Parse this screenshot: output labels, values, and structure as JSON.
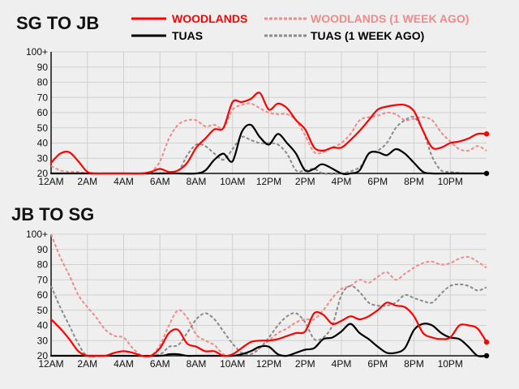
{
  "legend": {
    "woodlands": "WOODLANDS",
    "woodlands_week": "WOODLANDS (1 WEEK AGO)",
    "tuas": "TUAS",
    "tuas_week": "TUAS (1 WEEK AGO)"
  },
  "colors": {
    "woodlands": "#ff0000",
    "woodlands_week": "#f08a8a",
    "tuas": "#000000",
    "tuas_week": "#8a8a8a",
    "background": "#efefef"
  },
  "chart_data": [
    {
      "type": "line",
      "title": "SG TO JB",
      "xlabel": "",
      "ylabel": "",
      "ylim": [
        20,
        100
      ],
      "yticks": [
        "20",
        "30",
        "40",
        "50",
        "60",
        "70",
        "80",
        "90",
        "100+"
      ],
      "xticks": [
        "12AM",
        "2AM",
        "4AM",
        "6AM",
        "8AM",
        "10AM",
        "12PM",
        "2PM",
        "4PM",
        "6PM",
        "8PM",
        "10PM"
      ],
      "xlim": [
        0,
        24
      ],
      "grid": true,
      "series": [
        {
          "name": "WOODLANDS",
          "key": "woodlands",
          "style": "solid",
          "x": [
            0,
            0.5,
            1,
            1.5,
            2,
            2.5,
            3,
            4,
            5,
            5.5,
            6,
            6.5,
            7,
            7.5,
            8,
            8.5,
            9,
            9.5,
            10,
            10.5,
            11,
            11.5,
            12,
            12.5,
            13,
            13.5,
            14,
            14.5,
            15,
            15.5,
            16,
            16.5,
            17,
            17.5,
            18,
            18.5,
            19,
            19.5,
            20,
            20.5,
            21,
            21.5,
            22,
            22.5,
            23,
            23.5,
            24
          ],
          "y": [
            27,
            33,
            34,
            28,
            21,
            20,
            20,
            20,
            20,
            21,
            23,
            21,
            22,
            27,
            37,
            43,
            49,
            50,
            67,
            67,
            69,
            73,
            62,
            66,
            63,
            55,
            49,
            37,
            35,
            37,
            37,
            42,
            48,
            55,
            62,
            64,
            65,
            65,
            61,
            48,
            37,
            37,
            40,
            41,
            43,
            46,
            46
          ]
        },
        {
          "name": "WOODLANDS (1 WEEK AGO)",
          "key": "woodlands_week",
          "style": "dashed",
          "x": [
            0,
            0.5,
            1,
            1.5,
            2,
            2.5,
            3,
            4,
            5,
            5.5,
            6,
            6.5,
            7,
            7.5,
            8,
            8.5,
            9,
            9.5,
            10,
            10.5,
            11,
            11.5,
            12,
            12.5,
            13,
            13.5,
            14,
            14.5,
            15,
            15.5,
            16,
            16.5,
            17,
            17.5,
            18,
            18.5,
            19,
            19.5,
            20,
            20.5,
            21,
            21.5,
            22,
            22.5,
            23,
            23.5,
            24
          ],
          "y": [
            25,
            22,
            21,
            21,
            20,
            20,
            20,
            20,
            20,
            21,
            28,
            43,
            52,
            55,
            55,
            51,
            52,
            50,
            62,
            65,
            66,
            63,
            60,
            59,
            59,
            55,
            45,
            34,
            34,
            37,
            40,
            46,
            55,
            57,
            58,
            60,
            59,
            55,
            56,
            57,
            55,
            47,
            41,
            36,
            35,
            38,
            35
          ]
        },
        {
          "name": "TUAS",
          "key": "tuas",
          "style": "solid",
          "x": [
            0,
            2,
            4,
            6,
            7,
            8,
            8.5,
            9,
            9.5,
            10,
            10.5,
            11,
            11.5,
            12,
            12.5,
            13,
            13.5,
            14,
            14.5,
            15,
            16,
            16.5,
            17,
            17.5,
            18,
            18.5,
            19,
            19.5,
            20,
            20.5,
            21,
            22,
            23,
            24
          ],
          "y": [
            20,
            20,
            20,
            20,
            20,
            20,
            22,
            29,
            33,
            28,
            47,
            52,
            44,
            39,
            46,
            40,
            33,
            22,
            23,
            26,
            20,
            20,
            22,
            33,
            34,
            32,
            36,
            33,
            27,
            21,
            20,
            20,
            20,
            20
          ]
        },
        {
          "name": "TUAS (1 WEEK AGO)",
          "key": "tuas_week",
          "style": "dashed",
          "x": [
            0,
            2,
            4,
            6,
            7,
            7.5,
            8,
            8.5,
            9,
            9.5,
            10,
            10.5,
            11,
            11.5,
            12,
            12.5,
            13,
            13.5,
            14,
            14.5,
            15,
            16,
            17,
            17.5,
            18,
            18.5,
            19,
            19.5,
            20,
            20.5,
            21,
            21.5,
            22,
            23,
            24
          ],
          "y": [
            20,
            20,
            20,
            20,
            22,
            32,
            39,
            38,
            33,
            29,
            36,
            44,
            42,
            40,
            40,
            39,
            33,
            22,
            22,
            23,
            20,
            20,
            24,
            33,
            35,
            40,
            50,
            55,
            57,
            48,
            31,
            22,
            21,
            20,
            20
          ]
        }
      ]
    },
    {
      "type": "line",
      "title": "JB TO SG",
      "xlabel": "",
      "ylabel": "",
      "ylim": [
        20,
        100
      ],
      "yticks": [
        "20",
        "30",
        "40",
        "50",
        "60",
        "70",
        "80",
        "90",
        "100+"
      ],
      "xticks": [
        "12AM",
        "2AM",
        "4AM",
        "6AM",
        "8AM",
        "10AM",
        "12PM",
        "2PM",
        "4PM",
        "6PM",
        "8PM",
        "10PM"
      ],
      "xlim": [
        0,
        24
      ],
      "grid": true,
      "series": [
        {
          "name": "WOODLANDS",
          "key": "woodlands",
          "style": "solid",
          "x": [
            0,
            0.5,
            1,
            1.5,
            2,
            2.5,
            3,
            3.5,
            4,
            4.5,
            5,
            5.5,
            6,
            6.5,
            7,
            7.5,
            8,
            8.5,
            9,
            9.5,
            10,
            10.5,
            11,
            11.5,
            12,
            12.5,
            13,
            13.5,
            14,
            14.5,
            15,
            15.5,
            16,
            16.5,
            17,
            17.5,
            18,
            18.5,
            19,
            19.5,
            20,
            20.5,
            21,
            21.5,
            22,
            22.5,
            23,
            23.5,
            24
          ],
          "y": [
            44,
            38,
            31,
            23,
            20,
            20,
            20,
            22,
            23,
            22,
            20,
            20,
            25,
            35,
            37,
            28,
            26,
            23,
            23,
            20,
            21,
            25,
            29,
            30,
            30,
            31,
            33,
            35,
            36,
            48,
            47,
            41,
            43,
            46,
            44,
            46,
            50,
            55,
            53,
            52,
            46,
            35,
            32,
            31,
            32,
            40,
            40,
            38,
            29
          ]
        },
        {
          "name": "WOODLANDS (1 WEEK AGO)",
          "key": "woodlands_week",
          "style": "dashed",
          "x": [
            0,
            0.5,
            1,
            1.5,
            2,
            2.5,
            3,
            3.5,
            4,
            4.5,
            5,
            5.5,
            6,
            6.5,
            7,
            7.5,
            8,
            8.5,
            9,
            9.5,
            10,
            10.5,
            11,
            11.5,
            12,
            12.5,
            13,
            13.5,
            14,
            14.5,
            15,
            15.5,
            16,
            16.5,
            17,
            17.5,
            18,
            18.5,
            19,
            19.5,
            20,
            20.5,
            21,
            21.5,
            22,
            22.5,
            23,
            23.5,
            24
          ],
          "y": [
            100,
            85,
            73,
            60,
            52,
            45,
            37,
            33,
            32,
            25,
            20,
            20,
            27,
            40,
            50,
            45,
            34,
            30,
            27,
            21,
            20,
            21,
            23,
            25,
            30,
            35,
            38,
            42,
            44,
            44,
            50,
            58,
            64,
            66,
            70,
            68,
            72,
            75,
            70,
            74,
            78,
            81,
            82,
            80,
            81,
            84,
            85,
            82,
            78
          ]
        },
        {
          "name": "TUAS",
          "key": "tuas",
          "style": "solid",
          "x": [
            0,
            2,
            4,
            6,
            6.5,
            7,
            7.5,
            8,
            9,
            10,
            10.5,
            11,
            11.5,
            12,
            12.5,
            13,
            13.5,
            14,
            14.5,
            15,
            15.5,
            16,
            16.5,
            17,
            17.5,
            18,
            18.5,
            19,
            19.5,
            20,
            20.5,
            21,
            21.5,
            22,
            22.5,
            23,
            23.5,
            24
          ],
          "y": [
            20,
            20,
            20,
            20,
            21,
            21,
            20,
            20,
            20,
            20,
            21,
            23,
            26,
            26,
            21,
            20,
            22,
            24,
            25,
            31,
            32,
            36,
            41,
            35,
            31,
            26,
            22,
            22,
            25,
            37,
            41,
            40,
            35,
            32,
            31,
            26,
            20,
            20
          ]
        },
        {
          "name": "TUAS (1 WEEK AGO)",
          "key": "tuas_week",
          "style": "dashed",
          "x": [
            0,
            0.5,
            1,
            1.5,
            2,
            3,
            4,
            5,
            6,
            6.5,
            7,
            7.5,
            8,
            8.5,
            9,
            9.5,
            10,
            10.5,
            11,
            11.5,
            12,
            12.5,
            13,
            13.5,
            14,
            14.5,
            15,
            15.5,
            16,
            16.5,
            17,
            17.5,
            18,
            18.5,
            19,
            19.5,
            20,
            20.5,
            21,
            21.5,
            22,
            22.5,
            23,
            23.5,
            24
          ],
          "y": [
            66,
            52,
            40,
            28,
            20,
            20,
            20,
            20,
            21,
            26,
            27,
            35,
            44,
            48,
            44,
            36,
            28,
            22,
            21,
            25,
            32,
            40,
            46,
            48,
            42,
            31,
            32,
            40,
            60,
            66,
            62,
            55,
            53,
            53,
            55,
            60,
            58,
            56,
            55,
            61,
            66,
            67,
            66,
            63,
            65
          ]
        }
      ]
    }
  ]
}
